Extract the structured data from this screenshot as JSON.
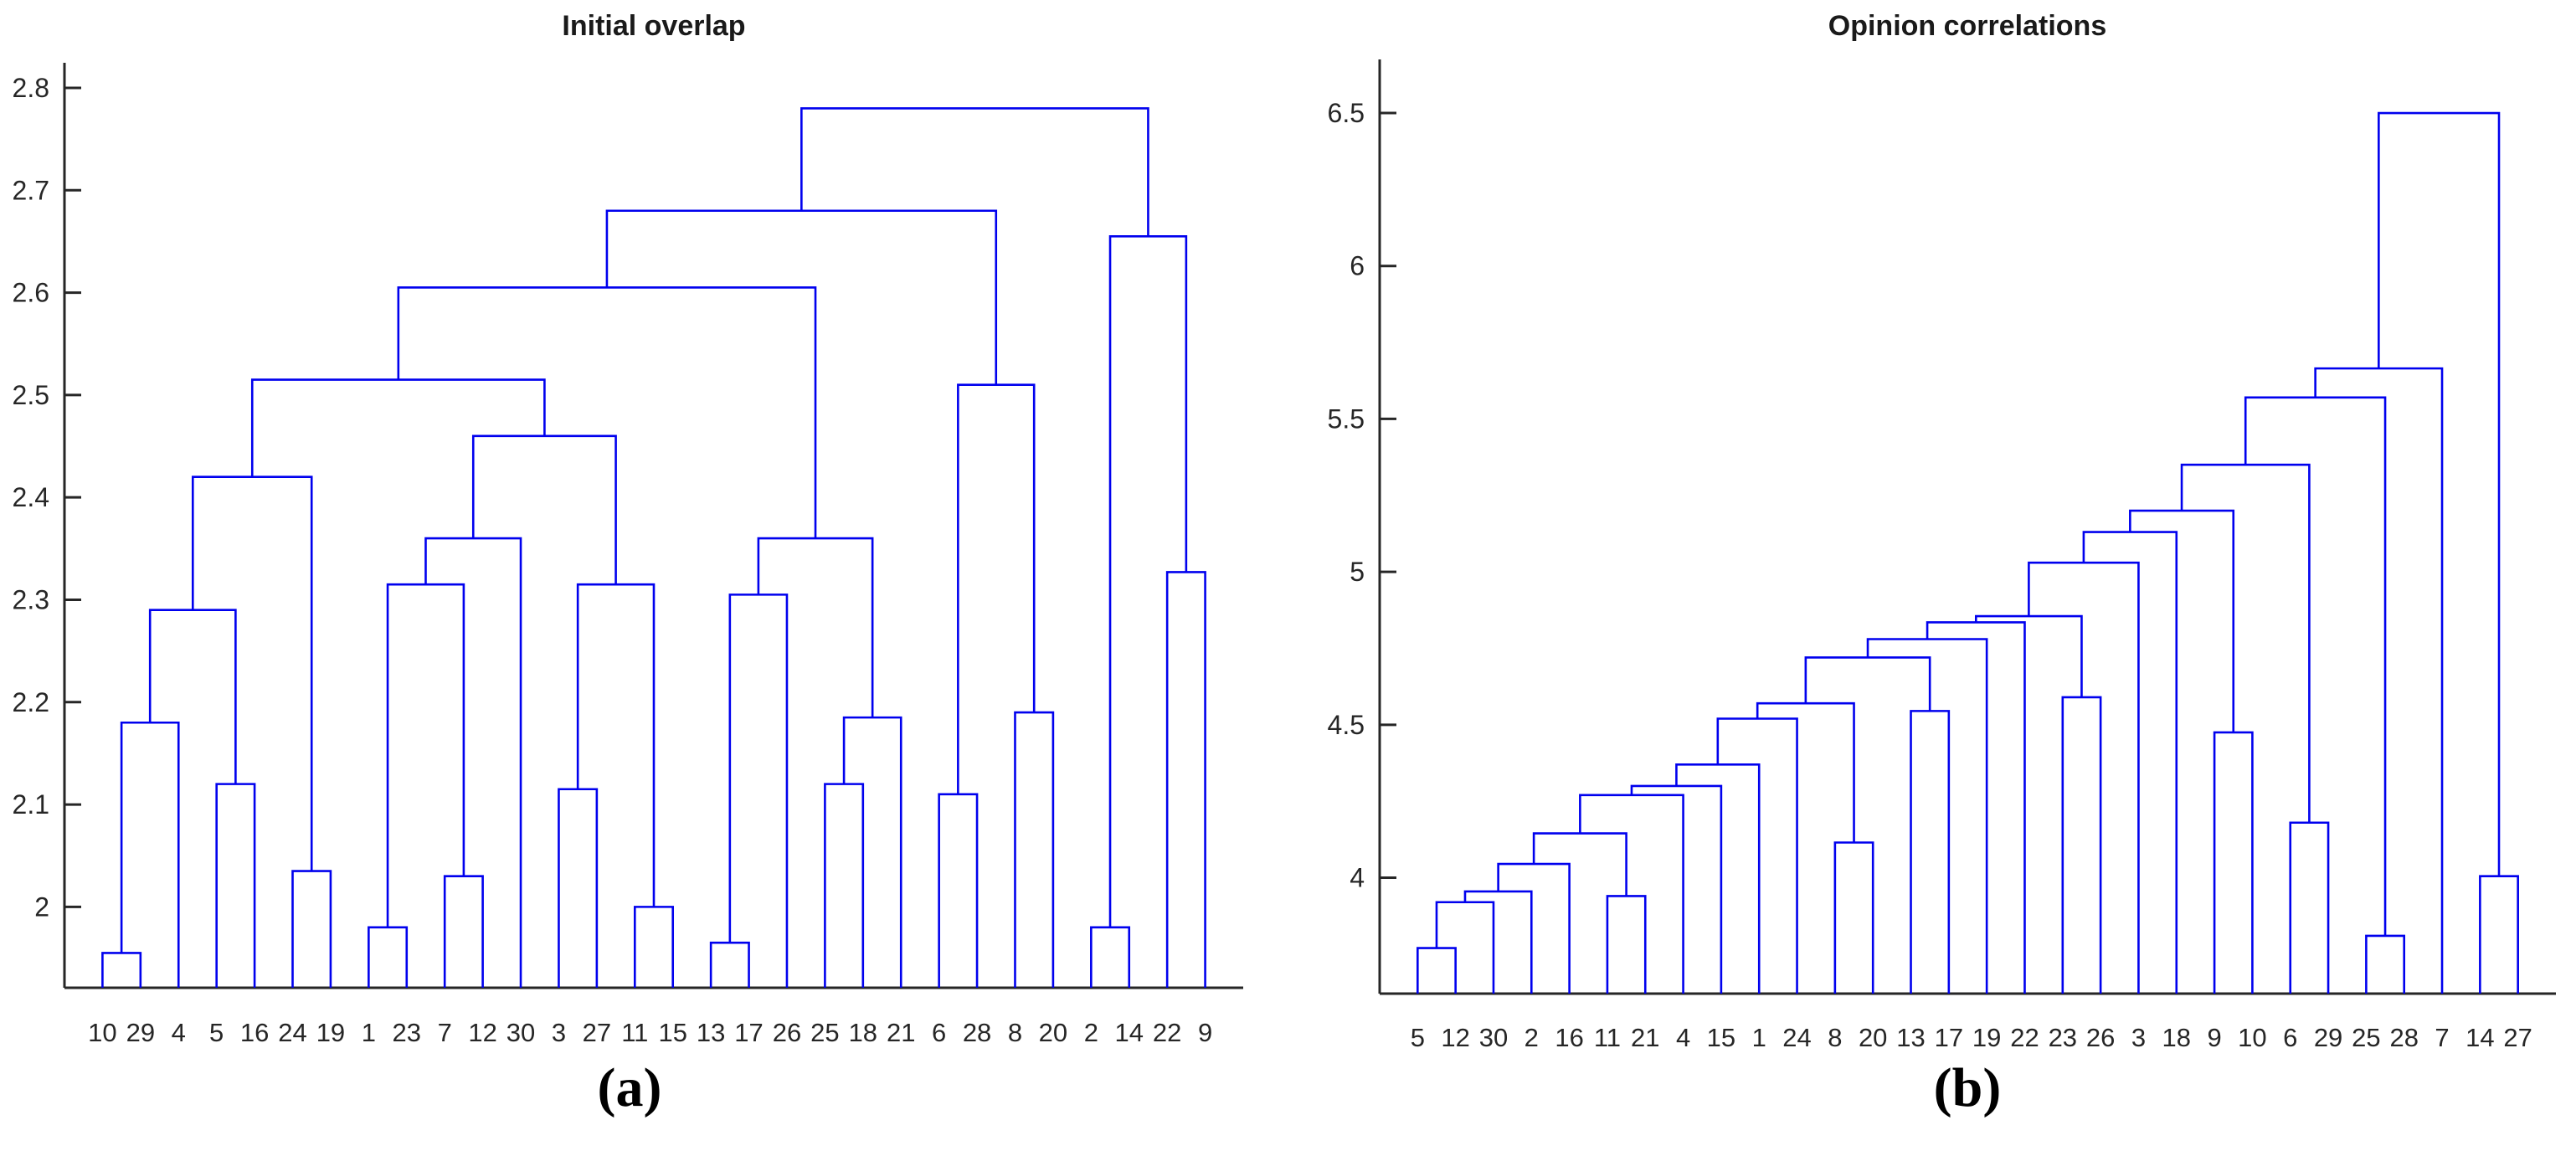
{
  "page": {
    "background": "#ffffff",
    "figure_type": "two-panel dendrogram figure"
  },
  "colors": {
    "dendrogram_line": "#0000ee",
    "axis": "#262626",
    "tick_label": "#262626",
    "title": "#1a1a1a",
    "caption": "#000000"
  },
  "chart_data": [
    {
      "type": "dendrogram",
      "title": "Initial overlap",
      "caption": "(a)",
      "xlabel": "",
      "ylabel": "",
      "legend": null,
      "grid": false,
      "ylim": [
        1.921,
        2.825
      ],
      "yticks": [
        2,
        2.1,
        2.2,
        2.3,
        2.4,
        2.5,
        2.6,
        2.7,
        2.8
      ],
      "ytick_labels": [
        "2",
        "2.1",
        "2.2",
        "2.3",
        "2.4",
        "2.5",
        "2.6",
        "2.7",
        "2.8"
      ],
      "leaf_order": [
        "10",
        "29",
        "4",
        "5",
        "16",
        "24",
        "19",
        "1",
        "23",
        "7",
        "12",
        "30",
        "3",
        "27",
        "11",
        "15",
        "13",
        "17",
        "26",
        "25",
        "18",
        "21",
        "6",
        "28",
        "8",
        "20",
        "2",
        "14",
        "22",
        "9"
      ],
      "merges": [
        [
          "10",
          "29",
          1.955
        ],
        [
          "#1",
          "4",
          2.18
        ],
        [
          "5",
          "16",
          2.12
        ],
        [
          "#2",
          "#3",
          2.29
        ],
        [
          "24",
          "19",
          2.035
        ],
        [
          "#4",
          "#5",
          2.42
        ],
        [
          "1",
          "23",
          1.98
        ],
        [
          "7",
          "12",
          2.03
        ],
        [
          "#7",
          "#8",
          2.315
        ],
        [
          "#9",
          "30",
          2.36
        ],
        [
          "3",
          "27",
          2.115
        ],
        [
          "11",
          "15",
          2.0
        ],
        [
          "#11",
          "#12",
          2.315
        ],
        [
          "#10",
          "#13",
          2.46
        ],
        [
          "#6",
          "#14",
          2.515
        ],
        [
          "13",
          "17",
          1.965
        ],
        [
          "#16",
          "26",
          2.305
        ],
        [
          "25",
          "18",
          2.12
        ],
        [
          "#18",
          "21",
          2.185
        ],
        [
          "#17",
          "#19",
          2.36
        ],
        [
          "#15",
          "#20",
          2.605
        ],
        [
          "6",
          "28",
          2.11
        ],
        [
          "8",
          "20",
          2.19
        ],
        [
          "#22",
          "#23",
          2.51
        ],
        [
          "#21",
          "#24",
          2.68
        ],
        [
          "2",
          "14",
          1.98
        ],
        [
          "22",
          "9",
          2.327
        ],
        [
          "#26",
          "#27",
          2.655
        ],
        [
          "#25",
          "#28",
          2.78
        ]
      ]
    },
    {
      "type": "dendrogram",
      "title": "Opinion correlations",
      "caption": "(b)",
      "xlabel": "",
      "ylabel": "",
      "legend": null,
      "grid": false,
      "ylim": [
        3.621,
        6.675
      ],
      "yticks": [
        4,
        4.5,
        5,
        5.5,
        6,
        6.5
      ],
      "ytick_labels": [
        "4",
        "4.5",
        "5",
        "5.5",
        "6",
        "6.5"
      ],
      "leaf_order": [
        "5",
        "12",
        "30",
        "2",
        "16",
        "11",
        "21",
        "4",
        "15",
        "1",
        "24",
        "8",
        "20",
        "13",
        "17",
        "19",
        "22",
        "23",
        "26",
        "3",
        "18",
        "9",
        "10",
        "6",
        "29",
        "25",
        "28",
        "7",
        "14",
        "27"
      ],
      "merges": [
        [
          "5",
          "12",
          3.77
        ],
        [
          "#1",
          "30",
          3.92
        ],
        [
          "#2",
          "2",
          3.955
        ],
        [
          "#3",
          "16",
          4.045
        ],
        [
          "11",
          "21",
          3.94
        ],
        [
          "#4",
          "#5",
          4.145
        ],
        [
          "#6",
          "4",
          4.27
        ],
        [
          "#7",
          "15",
          4.3
        ],
        [
          "#8",
          "1",
          4.37
        ],
        [
          "#9",
          "24",
          4.52
        ],
        [
          "8",
          "20",
          4.115
        ],
        [
          "#10",
          "#11",
          4.57
        ],
        [
          "13",
          "17",
          4.545
        ],
        [
          "#12",
          "#13",
          4.72
        ],
        [
          "#14",
          "19",
          4.78
        ],
        [
          "#15",
          "22",
          4.835
        ],
        [
          "23",
          "26",
          4.59
        ],
        [
          "#16",
          "#17",
          4.855
        ],
        [
          "#18",
          "3",
          5.03
        ],
        [
          "#19",
          "18",
          5.13
        ],
        [
          "9",
          "10",
          4.475
        ],
        [
          "#20",
          "#21",
          5.2
        ],
        [
          "6",
          "29",
          4.18
        ],
        [
          "#22",
          "#23",
          5.35
        ],
        [
          "25",
          "28",
          3.81
        ],
        [
          "#24",
          "#25",
          5.57
        ],
        [
          "#26",
          "7",
          5.665
        ],
        [
          "14",
          "27",
          4.005
        ],
        [
          "#27",
          "#28",
          6.5
        ]
      ]
    }
  ]
}
